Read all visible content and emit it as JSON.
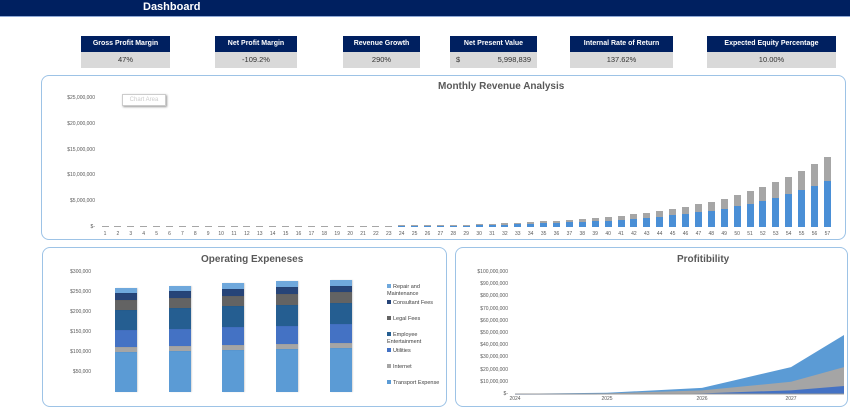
{
  "header": {
    "title": "Dashboard"
  },
  "kpis": [
    {
      "label": "Gross Profit Margin",
      "value": "47%"
    },
    {
      "label": "Net Profit Margin",
      "value": "-109.2%"
    },
    {
      "label": "Revenue Growth",
      "value": "290%"
    },
    {
      "label": "Net Present Value",
      "currency": "$",
      "value": "5,998,839"
    },
    {
      "label": "Internal Rate of Return",
      "value": "137.62%"
    },
    {
      "label": "Expected Equity Percentage",
      "value": "10.00%"
    }
  ],
  "colors": {
    "header": "#002060",
    "kpi_value_bg": "#d9d9d9",
    "panel_border": "#9dc3e6"
  },
  "chart_data": [
    {
      "type": "bar",
      "stacked": true,
      "title": "Monthly Revenue Analysis",
      "tooltip": "Chart Area",
      "categories": [
        "1",
        "2",
        "3",
        "4",
        "5",
        "6",
        "7",
        "8",
        "9",
        "10",
        "11",
        "12",
        "13",
        "14",
        "15",
        "16",
        "17",
        "18",
        "19",
        "20",
        "21",
        "22",
        "23",
        "24",
        "25",
        "26",
        "27",
        "28",
        "29",
        "30",
        "31",
        "32",
        "33",
        "34",
        "35",
        "36",
        "37",
        "38",
        "39",
        "40",
        "41",
        "42",
        "43",
        "44",
        "45",
        "46",
        "47",
        "48",
        "49",
        "50",
        "51",
        "52",
        "53",
        "54",
        "55",
        "56",
        "57"
      ],
      "yticks": [
        "$-",
        "$5,000,000",
        "$10,000,000",
        "$15,000,000",
        "$20,000,000",
        "$25,000,000"
      ],
      "ylim": [
        0,
        25000000
      ],
      "series": [
        {
          "color": "#4a8fd6",
          "values": [
            30000,
            30000,
            30000,
            30000,
            30000,
            30000,
            30000,
            30000,
            30000,
            30000,
            30000,
            30000,
            30000,
            30000,
            30000,
            80000,
            80000,
            80000,
            80000,
            80000,
            80000,
            80000,
            80000,
            180000,
            200000,
            200000,
            260000,
            260000,
            260000,
            330000,
            390000,
            460000,
            520000,
            650000,
            720000,
            780000,
            910000,
            980000,
            1100000,
            1240000,
            1370000,
            1630000,
            1760000,
            2020000,
            2280000,
            2540000,
            2930000,
            3120000,
            3510000,
            4030000,
            4550000,
            5070000,
            5660000,
            6310000,
            7090000,
            7930000,
            8850000
          ]
        },
        {
          "color": "#a6a6a6",
          "values": [
            20000,
            20000,
            20000,
            20000,
            20000,
            20000,
            20000,
            20000,
            20000,
            20000,
            20000,
            20000,
            20000,
            20000,
            20000,
            40000,
            40000,
            40000,
            40000,
            40000,
            40000,
            40000,
            40000,
            100000,
            100000,
            100000,
            140000,
            140000,
            140000,
            170000,
            210000,
            240000,
            280000,
            350000,
            380000,
            420000,
            490000,
            520000,
            600000,
            660000,
            730000,
            870000,
            940000,
            1080000,
            1220000,
            1360000,
            1570000,
            1680000,
            1890000,
            2170000,
            2450000,
            2730000,
            3040000,
            3390000,
            3810000,
            4270000,
            4750000
          ]
        }
      ]
    },
    {
      "type": "bar",
      "stacked": true,
      "title": "Operating Expeneses",
      "categories": [
        "",
        "",
        "",
        "",
        ""
      ],
      "yticks": [
        "$50,000",
        "$100,000",
        "$150,000",
        "$200,000",
        "$250,000",
        "$300,000"
      ],
      "ylim": [
        0,
        300000
      ],
      "legend_position": "right",
      "series": [
        {
          "name": "Transport Expense",
          "color": "#5b9bd5",
          "values": [
            100700,
            103000,
            105500,
            108000,
            110500
          ]
        },
        {
          "name": "Internet",
          "color": "#a5a5a5",
          "values": [
            11800,
            12000,
            12300,
            12600,
            12900
          ]
        },
        {
          "name": "Utilities",
          "color": "#4472c4",
          "values": [
            42500,
            43500,
            44500,
            45500,
            46500
          ]
        },
        {
          "name": "Employee Entertainment",
          "color": "#255e91",
          "values": [
            50000,
            51000,
            52000,
            52000,
            52000
          ]
        },
        {
          "name": "Legal Fees",
          "color": "#636363",
          "values": [
            25700,
            26000,
            26500,
            27000,
            27500
          ]
        },
        {
          "name": "Consultant Fees",
          "color": "#264478",
          "values": [
            15900,
            16000,
            16300,
            16500,
            16500
          ]
        },
        {
          "name": "Repair and Maintenance",
          "color": "#6fa8dc",
          "values": [
            14500,
            14500,
            14600,
            14800,
            15000
          ]
        }
      ]
    },
    {
      "type": "area",
      "title": "Profitibility",
      "categories": [
        "2024",
        "2025",
        "2026",
        "2027"
      ],
      "yticks": [
        "$-",
        "$10,000,000",
        "$20,000,000",
        "$30,000,000",
        "$40,000,000",
        "$50,000,000",
        "$60,000,000",
        "$70,000,000",
        "$80,000,000",
        "$90,000,000",
        "$100,000,000"
      ],
      "ylim": [
        0,
        100000000
      ],
      "series": [
        {
          "color": "#5b9bd5",
          "values": [
            200000,
            1000000,
            5000000,
            22000000
          ]
        },
        {
          "color": "#a5a5a5",
          "values": [
            100000,
            500000,
            3000000,
            10000000
          ]
        },
        {
          "color": "#4472c4",
          "values": [
            -500000,
            -400000,
            500000,
            3000000
          ]
        }
      ]
    }
  ]
}
